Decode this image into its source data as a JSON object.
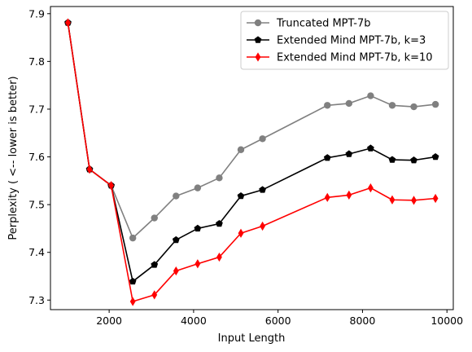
{
  "chart_data": {
    "type": "line",
    "title": "",
    "xlabel": "Input Length",
    "ylabel": "Perplexity ( <-- lower is better)",
    "xlim": [
      610,
      10150
    ],
    "ylim": [
      7.28,
      7.915
    ],
    "x_ticks": [
      2000,
      4000,
      6000,
      8000,
      10000
    ],
    "x_tick_labels": [
      "2000",
      "4000",
      "6000",
      "8000",
      "10000"
    ],
    "y_ticks": [
      7.3,
      7.4,
      7.5,
      7.6,
      7.7,
      7.8,
      7.9
    ],
    "y_tick_labels": [
      "7.3",
      "7.4",
      "7.5",
      "7.6",
      "7.7",
      "7.8",
      "7.9"
    ],
    "grid": false,
    "legend_position": "top-right",
    "x": [
      1024,
      1536,
      2048,
      2560,
      3072,
      3584,
      4096,
      4608,
      5120,
      5632,
      7168,
      7680,
      8192,
      8704,
      9216,
      9728
    ],
    "series": [
      {
        "name": "Truncated MPT-7b",
        "color": "#808080",
        "marker": "circle",
        "values": [
          7.881,
          7.574,
          7.54,
          7.43,
          7.472,
          7.518,
          7.535,
          7.556,
          7.615,
          7.638,
          7.708,
          7.712,
          7.728,
          7.708,
          7.705,
          7.71
        ]
      },
      {
        "name": "Extended Mind MPT-7b, k=3",
        "color": "#000000",
        "marker": "pentagon",
        "values": [
          7.881,
          7.574,
          7.54,
          7.339,
          7.374,
          7.426,
          7.45,
          7.46,
          7.518,
          7.531,
          7.598,
          7.606,
          7.618,
          7.594,
          7.593,
          7.6
        ]
      },
      {
        "name": "Extended Mind MPT-7b, k=10",
        "color": "#ff0000",
        "marker": "thin-diamond",
        "values": [
          7.881,
          7.574,
          7.54,
          7.297,
          7.311,
          7.361,
          7.376,
          7.39,
          7.44,
          7.455,
          7.515,
          7.52,
          7.535,
          7.51,
          7.509,
          7.513
        ]
      }
    ]
  }
}
